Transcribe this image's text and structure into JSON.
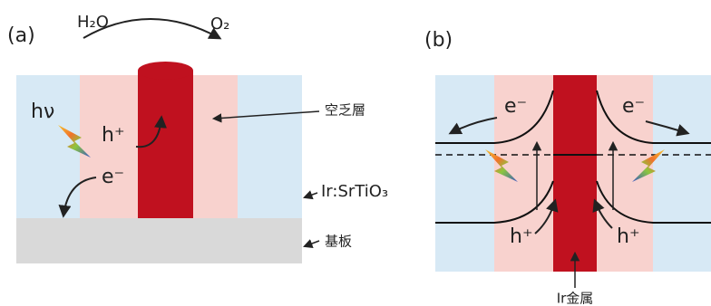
{
  "panel_a": {
    "label": "(a)",
    "reactant": "H₂O",
    "product": "O₂",
    "light": "hν",
    "hole": "h⁺",
    "electron": "e⁻",
    "annotations": [
      "空乏層",
      "Ir:SrTiO₃",
      "基板"
    ]
  },
  "panel_b": {
    "label": "(b)",
    "electrons": [
      "e⁻",
      "e⁻"
    ],
    "holes": [
      "h⁺",
      "h⁺"
    ],
    "metal": "Ir金属"
  }
}
